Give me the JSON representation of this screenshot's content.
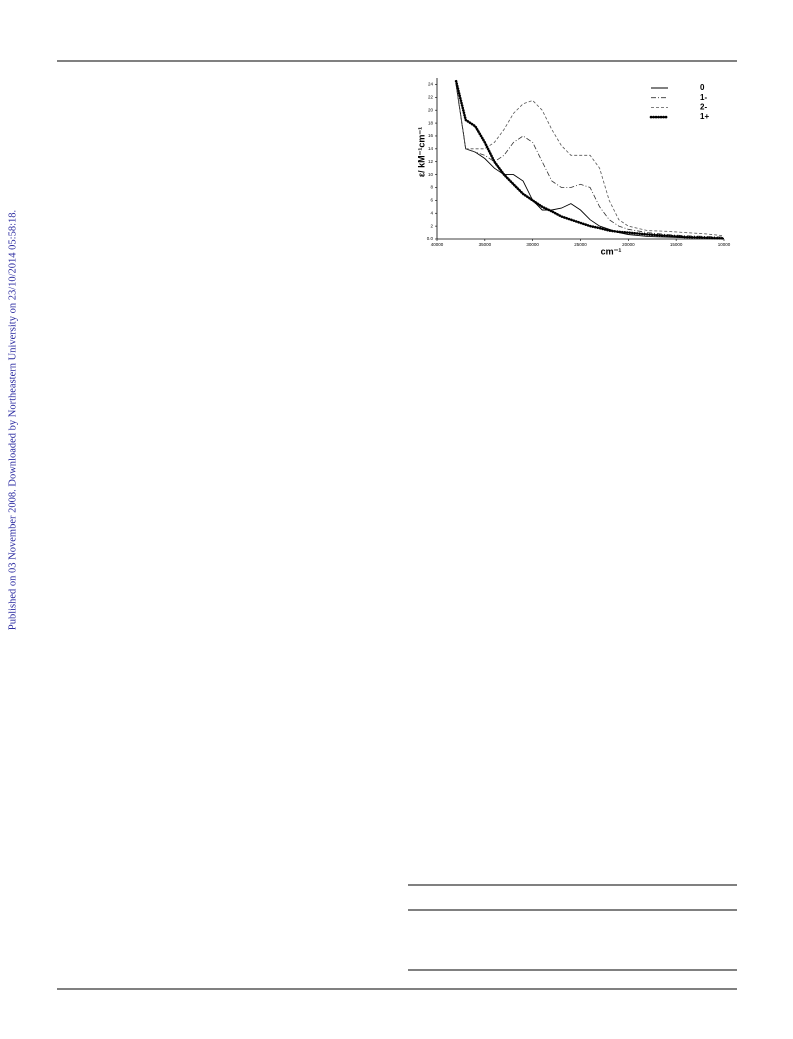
{
  "side_note": "Published on 03 November 2008. Downloaded by Northeastern University on 23/10/2014 05:58:18.",
  "chart_data": {
    "type": "line",
    "ylabel": "ε/ kM⁻¹cm⁻¹",
    "xlabel": "cm⁻¹",
    "x": [
      38000,
      37000,
      36000,
      35000,
      34000,
      33000,
      32000,
      31000,
      30000,
      29000,
      28000,
      27000,
      26000,
      25000,
      24000,
      23000,
      22000,
      21000,
      20000,
      18000,
      16000,
      14000,
      12000,
      10000
    ],
    "xlim": [
      40000,
      10000
    ],
    "xticks": [
      40000,
      35000,
      30000,
      25000,
      20000,
      15000,
      10000
    ],
    "ylim": [
      0,
      25
    ],
    "yticks": [
      {
        "value": 0,
        "label": "0.0"
      },
      2,
      4,
      6,
      8,
      10,
      12,
      14,
      16,
      18,
      20,
      22,
      24
    ],
    "legend": "top-right",
    "series": [
      {
        "name": "0",
        "color": "#000000",
        "style": "solid",
        "values": [
          24,
          14,
          13.5,
          12.5,
          11,
          10,
          10,
          9,
          6,
          4.5,
          4.5,
          4.8,
          5.5,
          4.5,
          3,
          2,
          1.5,
          1,
          0.7,
          0.4,
          0.3,
          0.2,
          0.2,
          0.1
        ]
      },
      {
        "name": "1-",
        "color": "#333333",
        "style": "dashdot",
        "values": [
          24,
          14,
          13.5,
          13,
          12,
          13,
          15,
          16,
          15,
          12,
          9,
          8,
          8,
          8.5,
          8,
          5,
          3,
          2,
          1.5,
          1,
          0.7,
          0.5,
          0.4,
          0.3
        ]
      },
      {
        "name": "2-",
        "color": "#555555",
        "style": "dash",
        "values": [
          24,
          14,
          14,
          14,
          15,
          17,
          19.5,
          21,
          21.5,
          20,
          17,
          14.5,
          13,
          13,
          13,
          11,
          6,
          3,
          2,
          1.3,
          1.2,
          1,
          0.8,
          0.5
        ]
      },
      {
        "name": "1+",
        "color": "#000000",
        "style": "dots",
        "values": [
          24.5,
          18.5,
          17.5,
          15,
          12,
          10,
          8.5,
          7,
          6,
          5,
          4.3,
          3.5,
          3,
          2.5,
          2,
          1.7,
          1.3,
          1.1,
          1,
          0.7,
          0.5,
          0.3,
          0.2,
          0.1
        ]
      }
    ]
  }
}
